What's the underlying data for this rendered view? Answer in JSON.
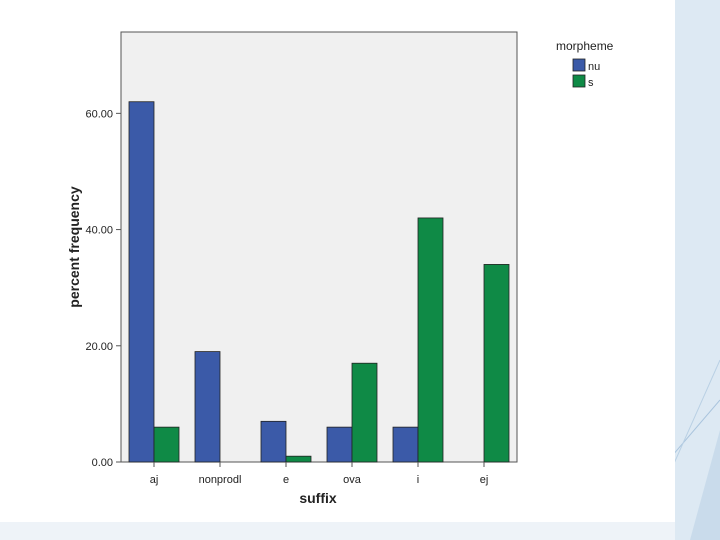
{
  "chart_data": {
    "type": "bar",
    "title": "",
    "xlabel": "suffix",
    "ylabel": "percent frequency",
    "categories": [
      "aj",
      "nonprodl",
      "e",
      "ova",
      "i",
      "ej"
    ],
    "series": [
      {
        "name": "nu",
        "color": "#3b5aa8",
        "values": [
          62,
          19,
          7,
          6,
          6,
          0
        ]
      },
      {
        "name": "s",
        "color": "#0f8a46",
        "values": [
          6,
          0,
          1,
          17,
          42,
          34
        ]
      }
    ],
    "ylim": [
      0,
      74
    ],
    "yticks": [
      "0.00",
      "20.00",
      "40.00",
      "60.00"
    ],
    "ytick_values": [
      0,
      20,
      40,
      60
    ],
    "grid": false,
    "legend": {
      "title": "morpheme",
      "position": "top-right-outside"
    },
    "plot_background": "#f0f0f0"
  }
}
